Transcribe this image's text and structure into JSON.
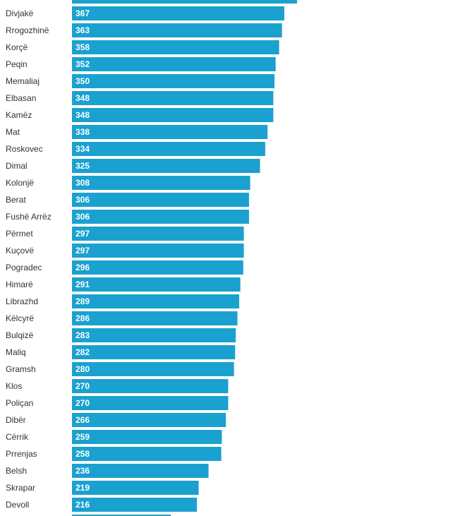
{
  "chart_data": {
    "type": "bar",
    "orientation": "horizontal",
    "title": "",
    "xlabel": "",
    "ylabel": "",
    "bar_color": "#1aa1d0",
    "value_label_color": "#ffffff",
    "category_label_color": "#333333",
    "xlim": [
      0,
      600
    ],
    "grid": false,
    "legend": "none",
    "categories": [
      "Divjakë",
      "Rrogozhinë",
      "Korçë",
      "Peqin",
      "Memaliaj",
      "Elbasan",
      "Kamëz",
      "Mat",
      "Roskovec",
      "Dimal",
      "Kolonjë",
      "Berat",
      "Fushë Arrëz",
      "Përmet",
      "Kuçovë",
      "Pogradec",
      "Himarë",
      "Librazhd",
      "Këlcyrë",
      "Bulqizë",
      "Maliq",
      "Gramsh",
      "Klos",
      "Poliçan",
      "Dibër",
      "Cërrik",
      "Prrenjas",
      "Belsh",
      "Skrapar",
      "Devoll"
    ],
    "values": [
      367,
      363,
      358,
      352,
      350,
      348,
      348,
      338,
      334,
      325,
      308,
      306,
      306,
      297,
      297,
      296,
      291,
      289,
      286,
      283,
      282,
      280,
      270,
      270,
      266,
      259,
      258,
      236,
      219,
      216
    ]
  }
}
